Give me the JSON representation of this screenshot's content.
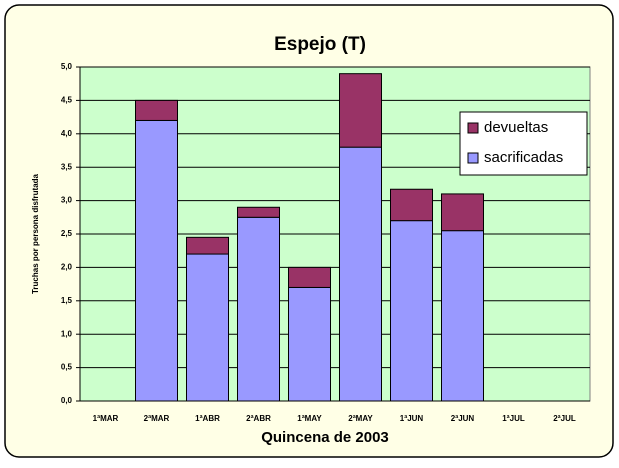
{
  "chart_data": {
    "type": "stacked-bar",
    "title": "Espejo (T)",
    "x_label": "Quincena de 2003",
    "y_label": "Truchas por persona disfrutada",
    "categories": [
      "1ªMAR",
      "2ªMAR",
      "1ªABR",
      "2ªABR",
      "1ªMAY",
      "2ªMAY",
      "1ªJUN",
      "2ªJUN",
      "1ªJUL",
      "2ªJUL"
    ],
    "series": [
      {
        "name": "sacrificadas",
        "color": "#9999ff",
        "values": [
          null,
          4.2,
          2.2,
          2.75,
          1.7,
          3.8,
          2.7,
          2.55,
          null,
          null
        ]
      },
      {
        "name": "devueltas",
        "color": "#993366",
        "values": [
          null,
          0.3,
          0.25,
          0.15,
          0.3,
          1.1,
          0.47,
          0.55,
          null,
          null
        ]
      }
    ],
    "ylim": [
      0,
      5
    ],
    "yticks": [
      {
        "value": 0,
        "label": "0,0"
      },
      {
        "value": 0.5,
        "label": "0,5"
      },
      {
        "value": 1,
        "label": "1,0"
      },
      {
        "value": 1.5,
        "label": "1,5"
      },
      {
        "value": 2,
        "label": "2,0"
      },
      {
        "value": 2.5,
        "label": "2,5"
      },
      {
        "value": 3,
        "label": "3,0"
      },
      {
        "value": 3.5,
        "label": "3,5"
      },
      {
        "value": 4,
        "label": "4,0"
      },
      {
        "value": 4.5,
        "label": "4,5"
      },
      {
        "value": 5,
        "label": "5,0"
      }
    ],
    "grid": true,
    "legend": "upper right",
    "plot_background": "#ccffcc"
  }
}
